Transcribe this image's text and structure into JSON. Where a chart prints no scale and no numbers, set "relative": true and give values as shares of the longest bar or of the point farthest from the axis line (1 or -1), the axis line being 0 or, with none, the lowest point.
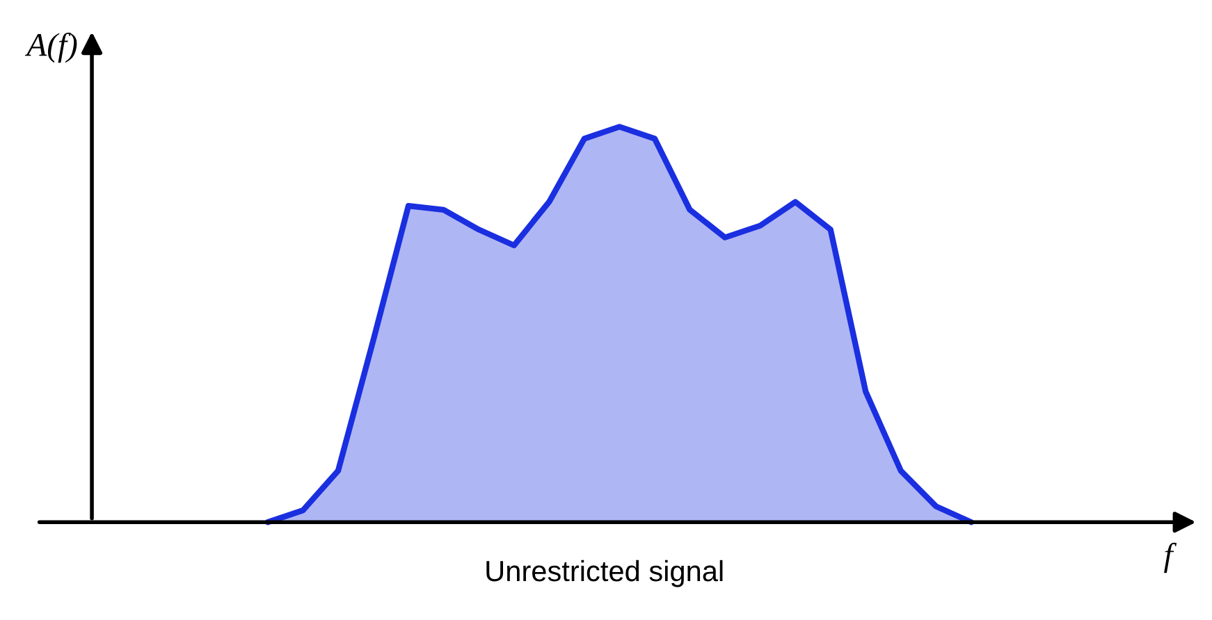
{
  "chart_data": {
    "type": "area",
    "relative": true,
    "xlabel": "f",
    "ylabel": "A(f)",
    "annotations": [
      "Unrestricted signal"
    ],
    "categories": [
      null,
      null,
      null,
      null,
      null,
      null,
      null,
      null,
      null,
      null,
      null,
      null,
      null,
      null,
      null,
      null,
      null,
      null,
      null,
      null,
      null,
      null,
      null,
      null,
      null,
      null,
      null,
      null,
      null,
      null,
      null,
      null
    ],
    "series": [
      {
        "color": "#1a2fe0",
        "values": [
          null,
          null,
          null,
          null,
          null,
          0,
          0.03,
          0.13,
          0.46,
          0.8,
          0.79,
          0.74,
          0.7,
          0.81,
          0.97,
          1,
          0.97,
          0.79,
          0.72,
          0.75,
          0.81,
          0.74,
          0.33,
          0.13,
          0.04,
          0,
          null,
          null,
          null,
          null,
          null,
          null
        ]
      }
    ]
  }
}
